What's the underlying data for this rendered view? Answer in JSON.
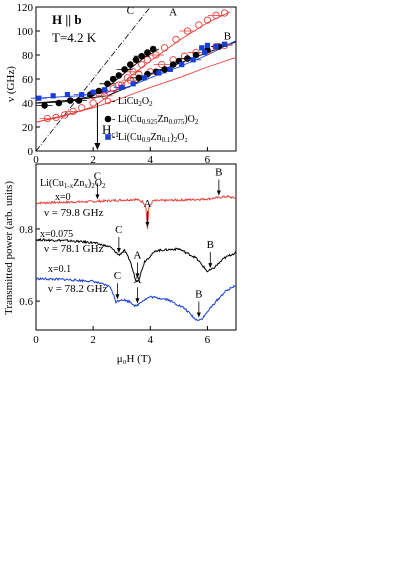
{
  "chart_data": [
    {
      "type": "scatter",
      "panel": "top",
      "annotation_field": "H || b",
      "annotation_temp": "T=4.2 K",
      "ylabel": "ν (GHz)",
      "xlim": [
        0,
        7
      ],
      "ylim": [
        0,
        120
      ],
      "xticks": [
        0,
        2,
        4,
        6
      ],
      "yticks": [
        0,
        20,
        40,
        60,
        80,
        100,
        120
      ],
      "branch_labels": [
        {
          "text": "C",
          "x": 3.3,
          "y": 114
        },
        {
          "text": "A",
          "x": 4.8,
          "y": 113
        },
        {
          "text": "B",
          "x": 6.7,
          "y": 93
        }
      ],
      "hc1_label": "H",
      "hc1_sub": "c1",
      "hc1_x": 2.15,
      "legend": [
        {
          "prefix": "- ",
          "name": "LiCu",
          "sub1": "2",
          "mid1": "O",
          "sub2": "2",
          "mid2": "",
          "sub3": "",
          "mid3": "",
          "marker": "open-circle",
          "color": "#e8413c"
        },
        {
          "prefix": "- ",
          "name": "Li(Cu",
          "sub1": "0.925",
          "mid1": "Zn",
          "sub2": "0.075",
          "mid2": ")O",
          "sub3": "2",
          "mid3": "",
          "marker": "filled-circle",
          "color": "#000000"
        },
        {
          "prefix": "- ",
          "name": "Li(Cu",
          "sub1": "0.9",
          "mid1": "Zn",
          "sub2": "0.1",
          "mid2": ")",
          "sub3": "2",
          "mid3": "O₂",
          "marker": "filled-square",
          "color": "#1a3fd6"
        }
      ],
      "dashdot_line": [
        [
          0,
          0
        ],
        [
          4.0,
          120
        ]
      ],
      "series": [
        {
          "name": "LiCu2O2",
          "marker": "open-circle",
          "color": "#e8413c",
          "points": [
            [
              0.4,
              27
            ],
            [
              0.7,
              28
            ],
            [
              1.0,
              30
            ],
            [
              1.3,
              33
            ],
            [
              1.6,
              36
            ],
            [
              2.0,
              40
            ],
            [
              2.4,
              46
            ],
            [
              2.9,
              55
            ],
            [
              3.2,
              61
            ],
            [
              3.4,
              66
            ],
            [
              3.7,
              72
            ],
            [
              3.9,
              76
            ],
            [
              4.2,
              80
            ],
            [
              4.5,
              86
            ],
            [
              4.9,
              93
            ],
            [
              5.3,
              100
            ],
            [
              5.7,
              105
            ],
            [
              6.0,
              109
            ],
            [
              6.3,
              113
            ],
            [
              6.6,
              115
            ],
            [
              2.0,
              46
            ],
            [
              2.4,
              50
            ],
            [
              2.7,
              52
            ],
            [
              3.0,
              55
            ],
            [
              3.3,
              59
            ],
            [
              3.6,
              64
            ],
            [
              4.0,
              66
            ],
            [
              4.4,
              72
            ],
            [
              4.8,
              76
            ],
            [
              5.2,
              79
            ],
            [
              5.6,
              82
            ],
            [
              6.0,
              83
            ],
            [
              6.3,
              87
            ],
            [
              6.6,
              88
            ]
          ],
          "fit_upper": [
            [
              0.0,
              24
            ],
            [
              1.0,
              29
            ],
            [
              2.0,
              37
            ],
            [
              2.8,
              50
            ],
            [
              3.4,
              64
            ],
            [
              4.0,
              75
            ],
            [
              5.0,
              92
            ],
            [
              6.0,
              107
            ],
            [
              6.8,
              116
            ]
          ],
          "fit_lower": [
            [
              0.0,
              24
            ],
            [
              1.0,
              30
            ],
            [
              2.0,
              36
            ],
            [
              3.0,
              44
            ],
            [
              4.0,
              53
            ],
            [
              5.0,
              61
            ],
            [
              6.0,
              70
            ],
            [
              7.0,
              78
            ]
          ]
        },
        {
          "name": "Li(Cu0.925Zn0.075)O2",
          "marker": "filled-circle",
          "color": "#000000",
          "points": [
            [
              0.3,
              38
            ],
            [
              0.8,
              40
            ],
            [
              1.2,
              42
            ],
            [
              1.5,
              42
            ],
            [
              1.9,
              47
            ],
            [
              2.2,
              50
            ],
            [
              2.5,
              56
            ],
            [
              2.7,
              60
            ],
            [
              2.9,
              63
            ],
            [
              3.1,
              68
            ],
            [
              3.3,
              72
            ],
            [
              3.5,
              76
            ],
            [
              3.7,
              79
            ],
            [
              3.9,
              82
            ],
            [
              4.1,
              85
            ],
            [
              3.6,
              61
            ],
            [
              3.9,
              64
            ],
            [
              4.2,
              66
            ],
            [
              4.5,
              68
            ],
            [
              4.8,
              72
            ],
            [
              5.0,
              75
            ],
            [
              5.3,
              77
            ],
            [
              5.6,
              80
            ],
            [
              6.0,
              84
            ],
            [
              6.4,
              87
            ]
          ],
          "fit_upper": [
            [
              0.0,
              40
            ],
            [
              1.0,
              41
            ],
            [
              2.0,
              46
            ],
            [
              2.6,
              55
            ],
            [
              3.2,
              67
            ],
            [
              3.8,
              78
            ],
            [
              4.3,
              85
            ]
          ],
          "fit_lower": [
            [
              0.0,
              40
            ],
            [
              1.5,
              43
            ],
            [
              2.5,
              46
            ],
            [
              3.3,
              54
            ],
            [
              4.0,
              64
            ],
            [
              5.0,
              73
            ],
            [
              6.0,
              82
            ],
            [
              7.0,
              91
            ]
          ]
        },
        {
          "name": "Li(Cu0.9Zn0.1)2O2",
          "marker": "filled-square",
          "color": "#1a3fd6",
          "points": [
            [
              0.1,
              44
            ],
            [
              0.6,
              46
            ],
            [
              1.1,
              47
            ],
            [
              1.6,
              47
            ],
            [
              2.0,
              49
            ],
            [
              2.4,
              51
            ],
            [
              3.0,
              53
            ],
            [
              3.4,
              56
            ],
            [
              3.8,
              61
            ],
            [
              4.3,
              65
            ],
            [
              4.7,
              68
            ],
            [
              5.1,
              72
            ],
            [
              5.5,
              76
            ],
            [
              5.9,
              82
            ],
            [
              6.3,
              87
            ],
            [
              6.6,
              89
            ],
            [
              5.8,
              86
            ],
            [
              6.0,
              88
            ]
          ],
          "fit": [
            [
              0.0,
              44
            ],
            [
              1.5,
              46
            ],
            [
              2.5,
              49
            ],
            [
              3.3,
              54
            ],
            [
              4.0,
              61
            ],
            [
              5.0,
              70
            ],
            [
              6.0,
              80
            ],
            [
              7.0,
              92
            ]
          ]
        }
      ]
    },
    {
      "type": "line",
      "panel": "bottom",
      "title": "Li(Cu",
      "title_sub1": "1-x",
      "title_mid": "Zn",
      "title_sub2": "x",
      "title_end": ")",
      "title_sub3": "2",
      "title_tail": "O",
      "title_sub4": "2",
      "xlabel": "μ₀H (T)",
      "ylabel": "Transmitted power (arb. units)",
      "xlim": [
        0,
        7
      ],
      "ylim": [
        0.52,
        0.98
      ],
      "xticks": [
        0,
        2,
        4,
        6
      ],
      "yticks": [
        0.6,
        0.8
      ],
      "series": [
        {
          "name": "x=0",
          "freq_label": "ν = 79.8 GHz",
          "color": "#e8413c",
          "peaks": [
            {
              "label": "C",
              "x": 2.15
            },
            {
              "label": "A",
              "x": 3.9
            },
            {
              "label": "B",
              "x": 6.4
            }
          ],
          "baseline": [
            [
              0.0,
              0.872
            ],
            [
              2.0,
              0.876
            ],
            [
              3.0,
              0.88
            ],
            [
              3.5,
              0.882
            ],
            [
              3.75,
              0.875
            ],
            [
              3.85,
              0.86
            ],
            [
              3.9,
              0.8
            ],
            [
              3.95,
              0.86
            ],
            [
              4.1,
              0.878
            ],
            [
              5.0,
              0.88
            ],
            [
              6.0,
              0.883
            ],
            [
              6.7,
              0.89
            ],
            [
              7.0,
              0.885
            ]
          ]
        },
        {
          "name": "x=0.075",
          "freq_label": "ν = 78.1 GHz",
          "color": "#000000",
          "peaks": [
            {
              "label": "C",
              "x": 2.9
            },
            {
              "label": "A",
              "x": 3.55
            },
            {
              "label": "B",
              "x": 6.1
            }
          ],
          "baseline": [
            [
              0.0,
              0.77
            ],
            [
              1.0,
              0.768
            ],
            [
              2.0,
              0.762
            ],
            [
              2.6,
              0.75
            ],
            [
              2.9,
              0.728
            ],
            [
              3.1,
              0.74
            ],
            [
              3.3,
              0.71
            ],
            [
              3.5,
              0.655
            ],
            [
              3.6,
              0.66
            ],
            [
              3.8,
              0.71
            ],
            [
              4.2,
              0.74
            ],
            [
              5.0,
              0.745
            ],
            [
              5.6,
              0.72
            ],
            [
              6.0,
              0.682
            ],
            [
              6.2,
              0.69
            ],
            [
              6.6,
              0.72
            ],
            [
              7.0,
              0.735
            ]
          ]
        },
        {
          "name": "x=0.1",
          "freq_label": "ν = 78.2 GHz",
          "color": "#1a3fd6",
          "peaks": [
            {
              "label": "C",
              "x": 2.85
            },
            {
              "label": "A",
              "x": 3.55
            },
            {
              "label": "B",
              "x": 5.7
            }
          ],
          "baseline": [
            [
              0.0,
              0.662
            ],
            [
              1.0,
              0.66
            ],
            [
              2.0,
              0.655
            ],
            [
              2.6,
              0.64
            ],
            [
              2.8,
              0.598
            ],
            [
              3.0,
              0.605
            ],
            [
              3.3,
              0.598
            ],
            [
              3.5,
              0.585
            ],
            [
              3.7,
              0.6
            ],
            [
              4.0,
              0.612
            ],
            [
              4.6,
              0.605
            ],
            [
              5.2,
              0.58
            ],
            [
              5.6,
              0.548
            ],
            [
              5.8,
              0.55
            ],
            [
              6.2,
              0.59
            ],
            [
              6.6,
              0.625
            ],
            [
              7.0,
              0.645
            ]
          ]
        }
      ]
    }
  ]
}
